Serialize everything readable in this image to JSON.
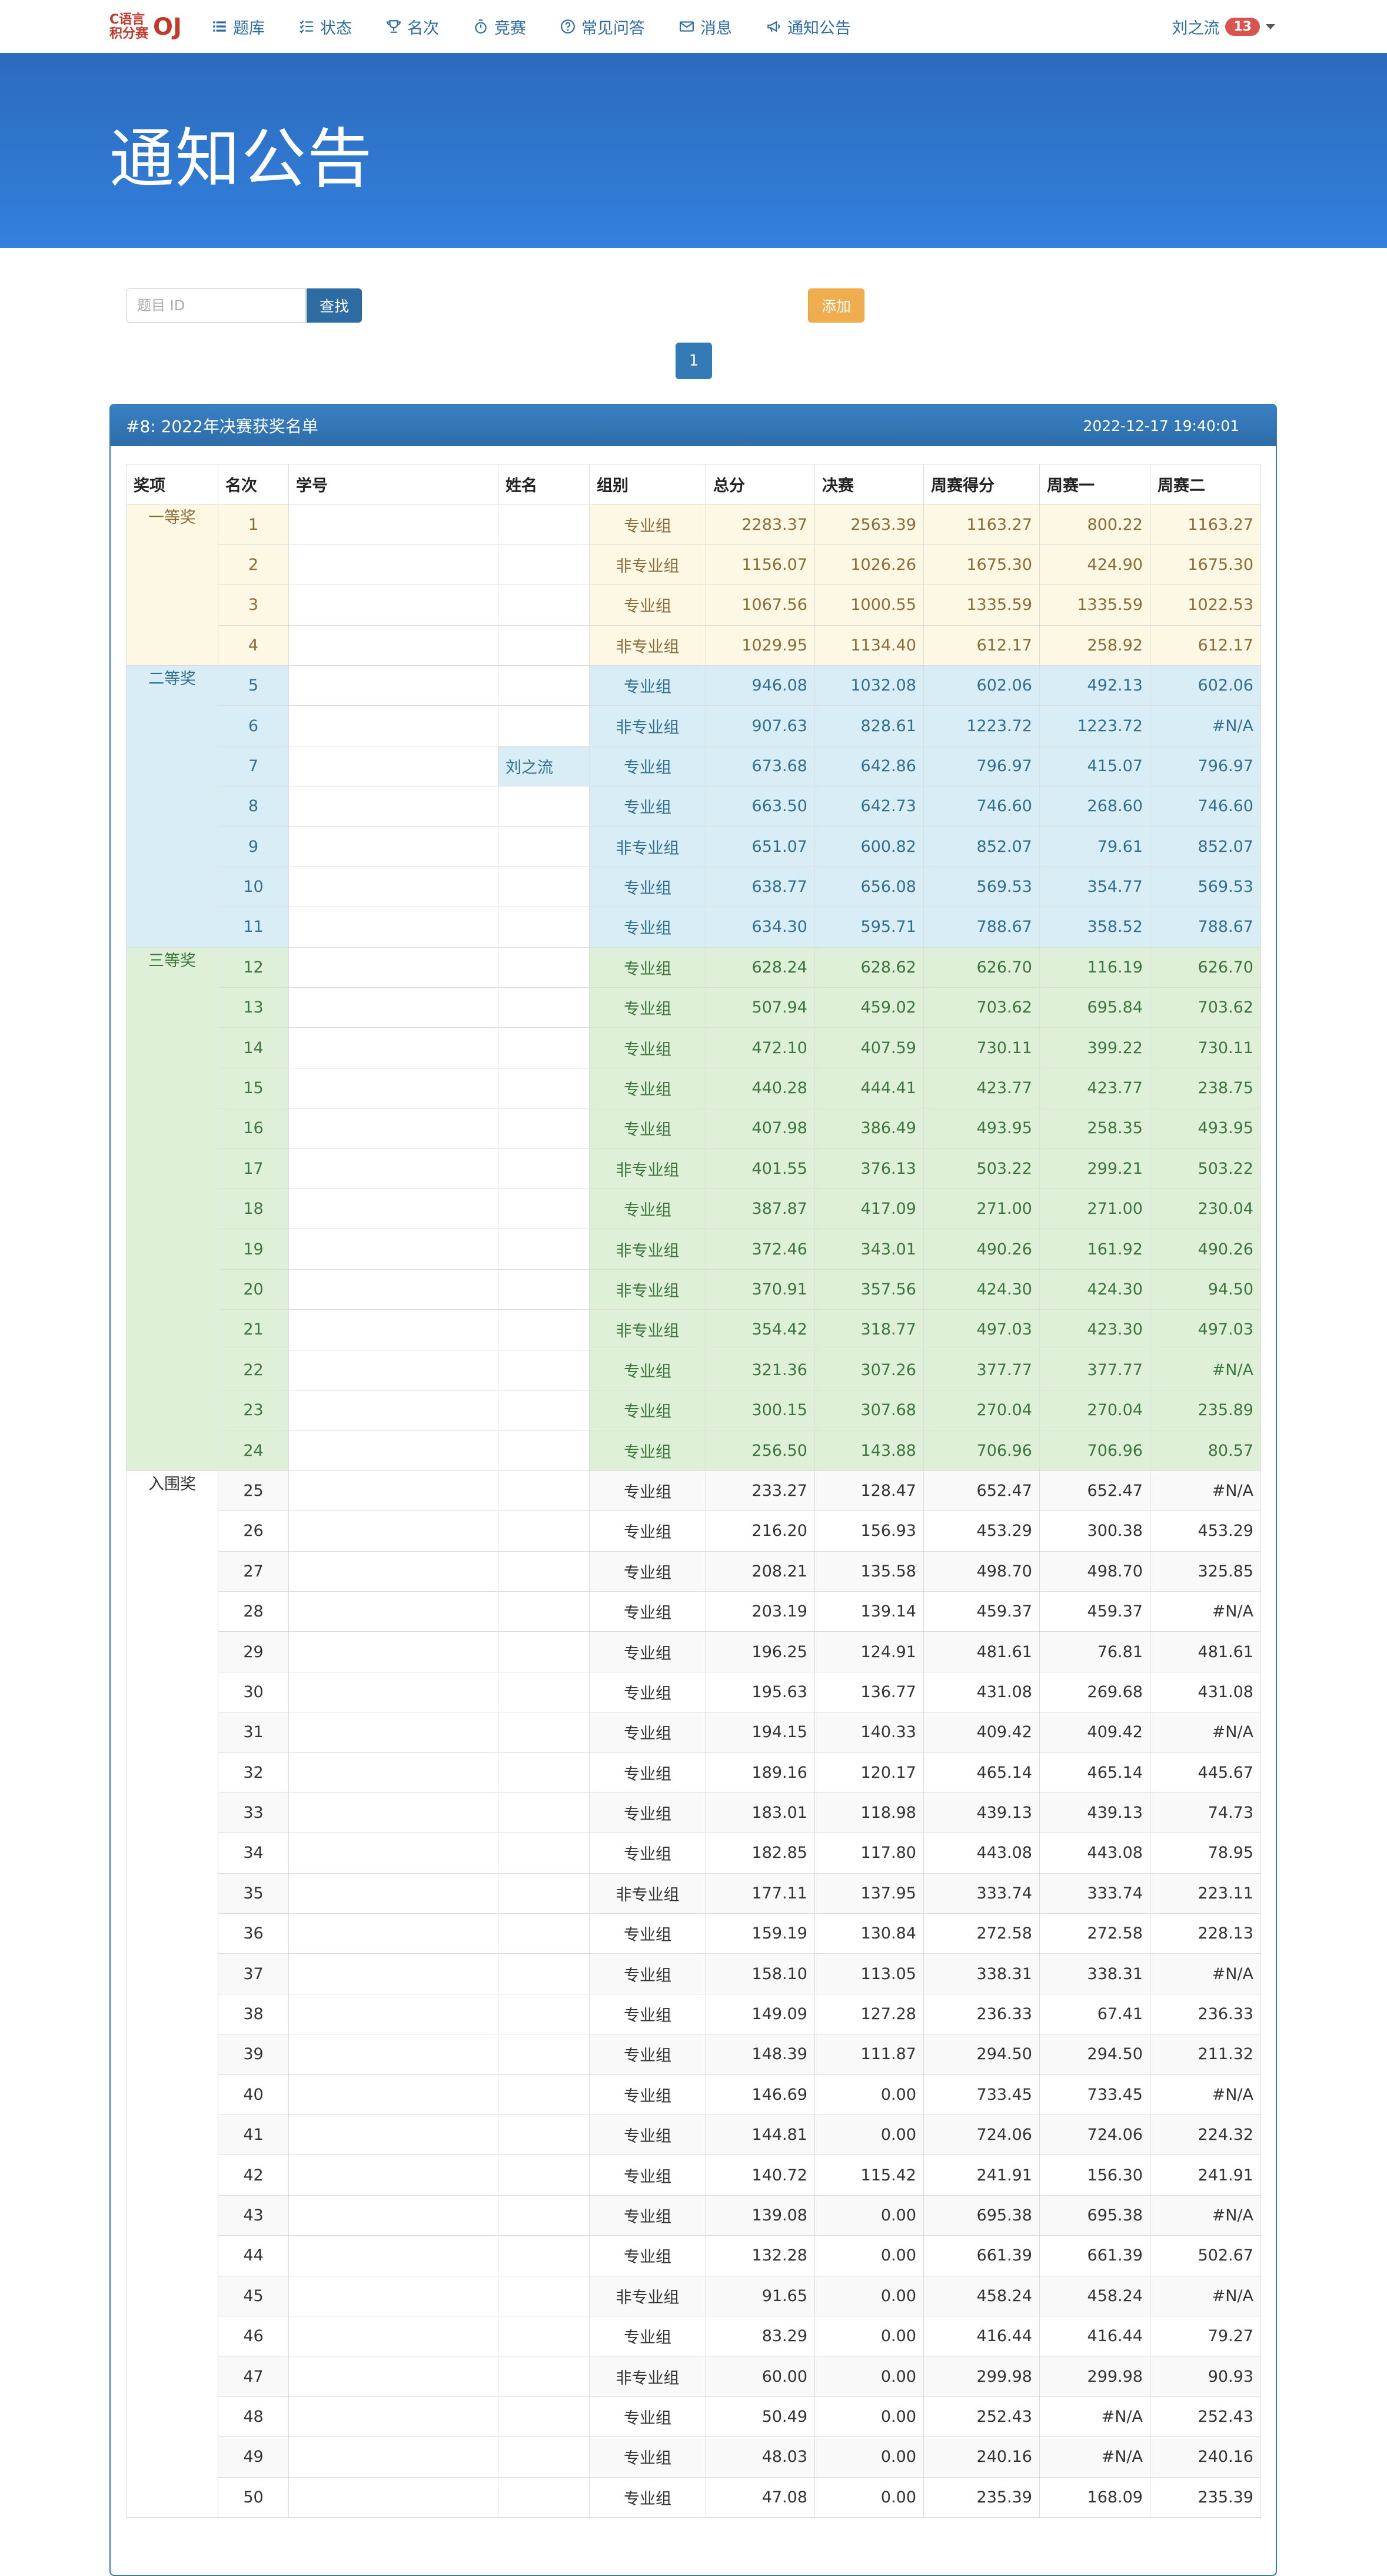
{
  "nav": {
    "logo_line1": "C语言",
    "logo_line2": "积分赛",
    "logo_oj": "OJ",
    "items": [
      {
        "label": "题库",
        "icon": "list-icon"
      },
      {
        "label": "状态",
        "icon": "tasks-icon"
      },
      {
        "label": "名次",
        "icon": "trophy-icon"
      },
      {
        "label": "竞赛",
        "icon": "stopwatch-icon"
      },
      {
        "label": "常见问答",
        "icon": "question-circle-icon"
      },
      {
        "label": "消息",
        "icon": "envelope-icon"
      },
      {
        "label": "通知公告",
        "icon": "bullhorn-icon"
      }
    ],
    "user": "刘之流",
    "badge": "13"
  },
  "hero": {
    "title": "通知公告"
  },
  "search": {
    "placeholder": "题目 ID",
    "button": "查找"
  },
  "add_button": "添加",
  "pagination": {
    "current": "1"
  },
  "notice": {
    "title": "#8: 2022年决赛获奖名单",
    "date": "2022-12-17 19:40:01",
    "columns": [
      "奖项",
      "名次",
      "学号",
      "姓名",
      "组别",
      "总分",
      "决赛",
      "周赛得分",
      "周赛一",
      "周赛二"
    ],
    "awards": [
      {
        "label": "一等奖",
        "start": 1,
        "span": 4
      },
      {
        "label": "二等奖",
        "start": 5,
        "span": 7
      },
      {
        "label": "三等奖",
        "start": 12,
        "span": 13
      },
      {
        "label": "入围奖",
        "start": 25,
        "span": 26
      }
    ],
    "rows": [
      [
        "1",
        "",
        "",
        "专业组",
        "2283.37",
        "2563.39",
        "1163.27",
        "800.22",
        "1163.27"
      ],
      [
        "2",
        "",
        "",
        "非专业组",
        "1156.07",
        "1026.26",
        "1675.30",
        "424.90",
        "1675.30"
      ],
      [
        "3",
        "",
        "",
        "专业组",
        "1067.56",
        "1000.55",
        "1335.59",
        "1335.59",
        "1022.53"
      ],
      [
        "4",
        "",
        "",
        "非专业组",
        "1029.95",
        "1134.40",
        "612.17",
        "258.92",
        "612.17"
      ],
      [
        "5",
        "",
        "",
        "专业组",
        "946.08",
        "1032.08",
        "602.06",
        "492.13",
        "602.06"
      ],
      [
        "6",
        "",
        "",
        "非专业组",
        "907.63",
        "828.61",
        "1223.72",
        "1223.72",
        "#N/A"
      ],
      [
        "7",
        "",
        "刘之流",
        "专业组",
        "673.68",
        "642.86",
        "796.97",
        "415.07",
        "796.97"
      ],
      [
        "8",
        "",
        "",
        "专业组",
        "663.50",
        "642.73",
        "746.60",
        "268.60",
        "746.60"
      ],
      [
        "9",
        "",
        "",
        "非专业组",
        "651.07",
        "600.82",
        "852.07",
        "79.61",
        "852.07"
      ],
      [
        "10",
        "",
        "",
        "专业组",
        "638.77",
        "656.08",
        "569.53",
        "354.77",
        "569.53"
      ],
      [
        "11",
        "",
        "",
        "专业组",
        "634.30",
        "595.71",
        "788.67",
        "358.52",
        "788.67"
      ],
      [
        "12",
        "",
        "",
        "专业组",
        "628.24",
        "628.62",
        "626.70",
        "116.19",
        "626.70"
      ],
      [
        "13",
        "",
        "",
        "专业组",
        "507.94",
        "459.02",
        "703.62",
        "695.84",
        "703.62"
      ],
      [
        "14",
        "",
        "",
        "专业组",
        "472.10",
        "407.59",
        "730.11",
        "399.22",
        "730.11"
      ],
      [
        "15",
        "",
        "",
        "专业组",
        "440.28",
        "444.41",
        "423.77",
        "423.77",
        "238.75"
      ],
      [
        "16",
        "",
        "",
        "专业组",
        "407.98",
        "386.49",
        "493.95",
        "258.35",
        "493.95"
      ],
      [
        "17",
        "",
        "",
        "非专业组",
        "401.55",
        "376.13",
        "503.22",
        "299.21",
        "503.22"
      ],
      [
        "18",
        "",
        "",
        "专业组",
        "387.87",
        "417.09",
        "271.00",
        "271.00",
        "230.04"
      ],
      [
        "19",
        "",
        "",
        "非专业组",
        "372.46",
        "343.01",
        "490.26",
        "161.92",
        "490.26"
      ],
      [
        "20",
        "",
        "",
        "非专业组",
        "370.91",
        "357.56",
        "424.30",
        "424.30",
        "94.50"
      ],
      [
        "21",
        "",
        "",
        "非专业组",
        "354.42",
        "318.77",
        "497.03",
        "423.30",
        "497.03"
      ],
      [
        "22",
        "",
        "",
        "专业组",
        "321.36",
        "307.26",
        "377.77",
        "377.77",
        "#N/A"
      ],
      [
        "23",
        "",
        "",
        "专业组",
        "300.15",
        "307.68",
        "270.04",
        "270.04",
        "235.89"
      ],
      [
        "24",
        "",
        "",
        "专业组",
        "256.50",
        "143.88",
        "706.96",
        "706.96",
        "80.57"
      ],
      [
        "25",
        "",
        "",
        "专业组",
        "233.27",
        "128.47",
        "652.47",
        "652.47",
        "#N/A"
      ],
      [
        "26",
        "",
        "",
        "专业组",
        "216.20",
        "156.93",
        "453.29",
        "300.38",
        "453.29"
      ],
      [
        "27",
        "",
        "",
        "专业组",
        "208.21",
        "135.58",
        "498.70",
        "498.70",
        "325.85"
      ],
      [
        "28",
        "",
        "",
        "专业组",
        "203.19",
        "139.14",
        "459.37",
        "459.37",
        "#N/A"
      ],
      [
        "29",
        "",
        "",
        "专业组",
        "196.25",
        "124.91",
        "481.61",
        "76.81",
        "481.61"
      ],
      [
        "30",
        "",
        "",
        "专业组",
        "195.63",
        "136.77",
        "431.08",
        "269.68",
        "431.08"
      ],
      [
        "31",
        "",
        "",
        "专业组",
        "194.15",
        "140.33",
        "409.42",
        "409.42",
        "#N/A"
      ],
      [
        "32",
        "",
        "",
        "专业组",
        "189.16",
        "120.17",
        "465.14",
        "465.14",
        "445.67"
      ],
      [
        "33",
        "",
        "",
        "专业组",
        "183.01",
        "118.98",
        "439.13",
        "439.13",
        "74.73"
      ],
      [
        "34",
        "",
        "",
        "专业组",
        "182.85",
        "117.80",
        "443.08",
        "443.08",
        "78.95"
      ],
      [
        "35",
        "",
        "",
        "非专业组",
        "177.11",
        "137.95",
        "333.74",
        "333.74",
        "223.11"
      ],
      [
        "36",
        "",
        "",
        "专业组",
        "159.19",
        "130.84",
        "272.58",
        "272.58",
        "228.13"
      ],
      [
        "37",
        "",
        "",
        "专业组",
        "158.10",
        "113.05",
        "338.31",
        "338.31",
        "#N/A"
      ],
      [
        "38",
        "",
        "",
        "专业组",
        "149.09",
        "127.28",
        "236.33",
        "67.41",
        "236.33"
      ],
      [
        "39",
        "",
        "",
        "专业组",
        "148.39",
        "111.87",
        "294.50",
        "294.50",
        "211.32"
      ],
      [
        "40",
        "",
        "",
        "专业组",
        "146.69",
        "0.00",
        "733.45",
        "733.45",
        "#N/A"
      ],
      [
        "41",
        "",
        "",
        "专业组",
        "144.81",
        "0.00",
        "724.06",
        "724.06",
        "224.32"
      ],
      [
        "42",
        "",
        "",
        "专业组",
        "140.72",
        "115.42",
        "241.91",
        "156.30",
        "241.91"
      ],
      [
        "43",
        "",
        "",
        "专业组",
        "139.08",
        "0.00",
        "695.38",
        "695.38",
        "#N/A"
      ],
      [
        "44",
        "",
        "",
        "专业组",
        "132.28",
        "0.00",
        "661.39",
        "661.39",
        "502.67"
      ],
      [
        "45",
        "",
        "",
        "非专业组",
        "91.65",
        "0.00",
        "458.24",
        "458.24",
        "#N/A"
      ],
      [
        "46",
        "",
        "",
        "专业组",
        "83.29",
        "0.00",
        "416.44",
        "416.44",
        "79.27"
      ],
      [
        "47",
        "",
        "",
        "非专业组",
        "60.00",
        "0.00",
        "299.98",
        "299.98",
        "90.93"
      ],
      [
        "48",
        "",
        "",
        "专业组",
        "50.49",
        "0.00",
        "252.43",
        "#N/A",
        "252.43"
      ],
      [
        "49",
        "",
        "",
        "专业组",
        "48.03",
        "0.00",
        "240.16",
        "#N/A",
        "240.16"
      ],
      [
        "50",
        "",
        "",
        "专业组",
        "47.08",
        "0.00",
        "235.39",
        "168.09",
        "235.39"
      ]
    ]
  },
  "colors": {
    "primary": "#337ab7",
    "warning": "#f0ad4e",
    "danger": "#d9534f",
    "first_prize_bg": "#fcf8e3",
    "second_prize_bg": "#d9edf7",
    "third_prize_bg": "#dff0d8"
  }
}
